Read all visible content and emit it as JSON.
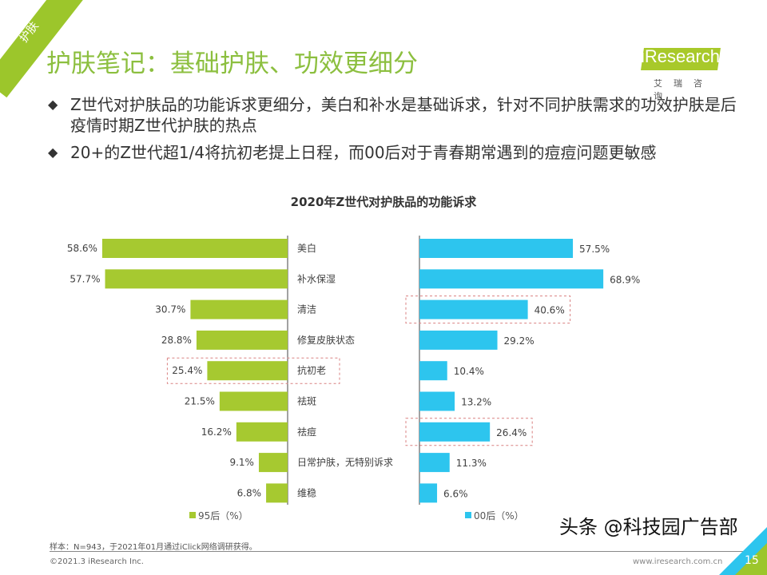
{
  "header": {
    "tag": "护肤",
    "title": "护肤笔记：基础护肤、功效更细分",
    "logo": "iResearch",
    "logo_sub": "艾瑞咨询"
  },
  "bullets": [
    "Z世代对护肤品的功能诉求更细分，美白和补水是基础诉求，针对不同护肤需求的功效护肤是后疫情时期Z世代护肤的热点",
    "20+的Z世代超1/4将抗初老提上日程，而00后对于青春期常遇到的痘痘问题更敏感"
  ],
  "bullet_icon": "diamond-icon",
  "chart_data": {
    "type": "bar",
    "title": "2020年Z世代对护肤品的功能诉求",
    "categories": [
      "美白",
      "补水保湿",
      "清洁",
      "修复皮肤状态",
      "抗初老",
      "祛斑",
      "祛痘",
      "日常护肤，无特别诉求",
      "维稳"
    ],
    "series": [
      {
        "name": "95后（%）",
        "values": [
          58.6,
          57.7,
          30.7,
          28.8,
          25.4,
          21.5,
          16.2,
          9.1,
          6.8
        ],
        "color": "#a6c930",
        "labels": [
          "58.6%",
          "57.7%",
          "30.7%",
          "28.8%",
          "25.4%",
          "21.5%",
          "16.2%",
          "9.1%",
          "6.8%"
        ],
        "highlight": [
          "抗初老"
        ]
      },
      {
        "name": "00后（%）",
        "values": [
          57.5,
          68.9,
          40.6,
          29.2,
          10.4,
          13.2,
          26.4,
          11.3,
          6.6
        ],
        "color": "#2dc5ee",
        "labels": [
          "57.5%",
          "68.9%",
          "40.6%",
          "29.2%",
          "10.4%",
          "13.2%",
          "26.4%",
          "11.3%",
          "6.6%"
        ],
        "highlight": [
          "清洁",
          "祛痘"
        ]
      }
    ],
    "legend_placement": "bottom"
  },
  "footer": {
    "note": "样本：N=943，于2021年01月通过iClick网络调研获得。",
    "copyright": "©2021.3 iResearch Inc.",
    "url": "www.iresearch.com.cn",
    "page": "15",
    "watermark": "头条 @科技园广告部"
  }
}
